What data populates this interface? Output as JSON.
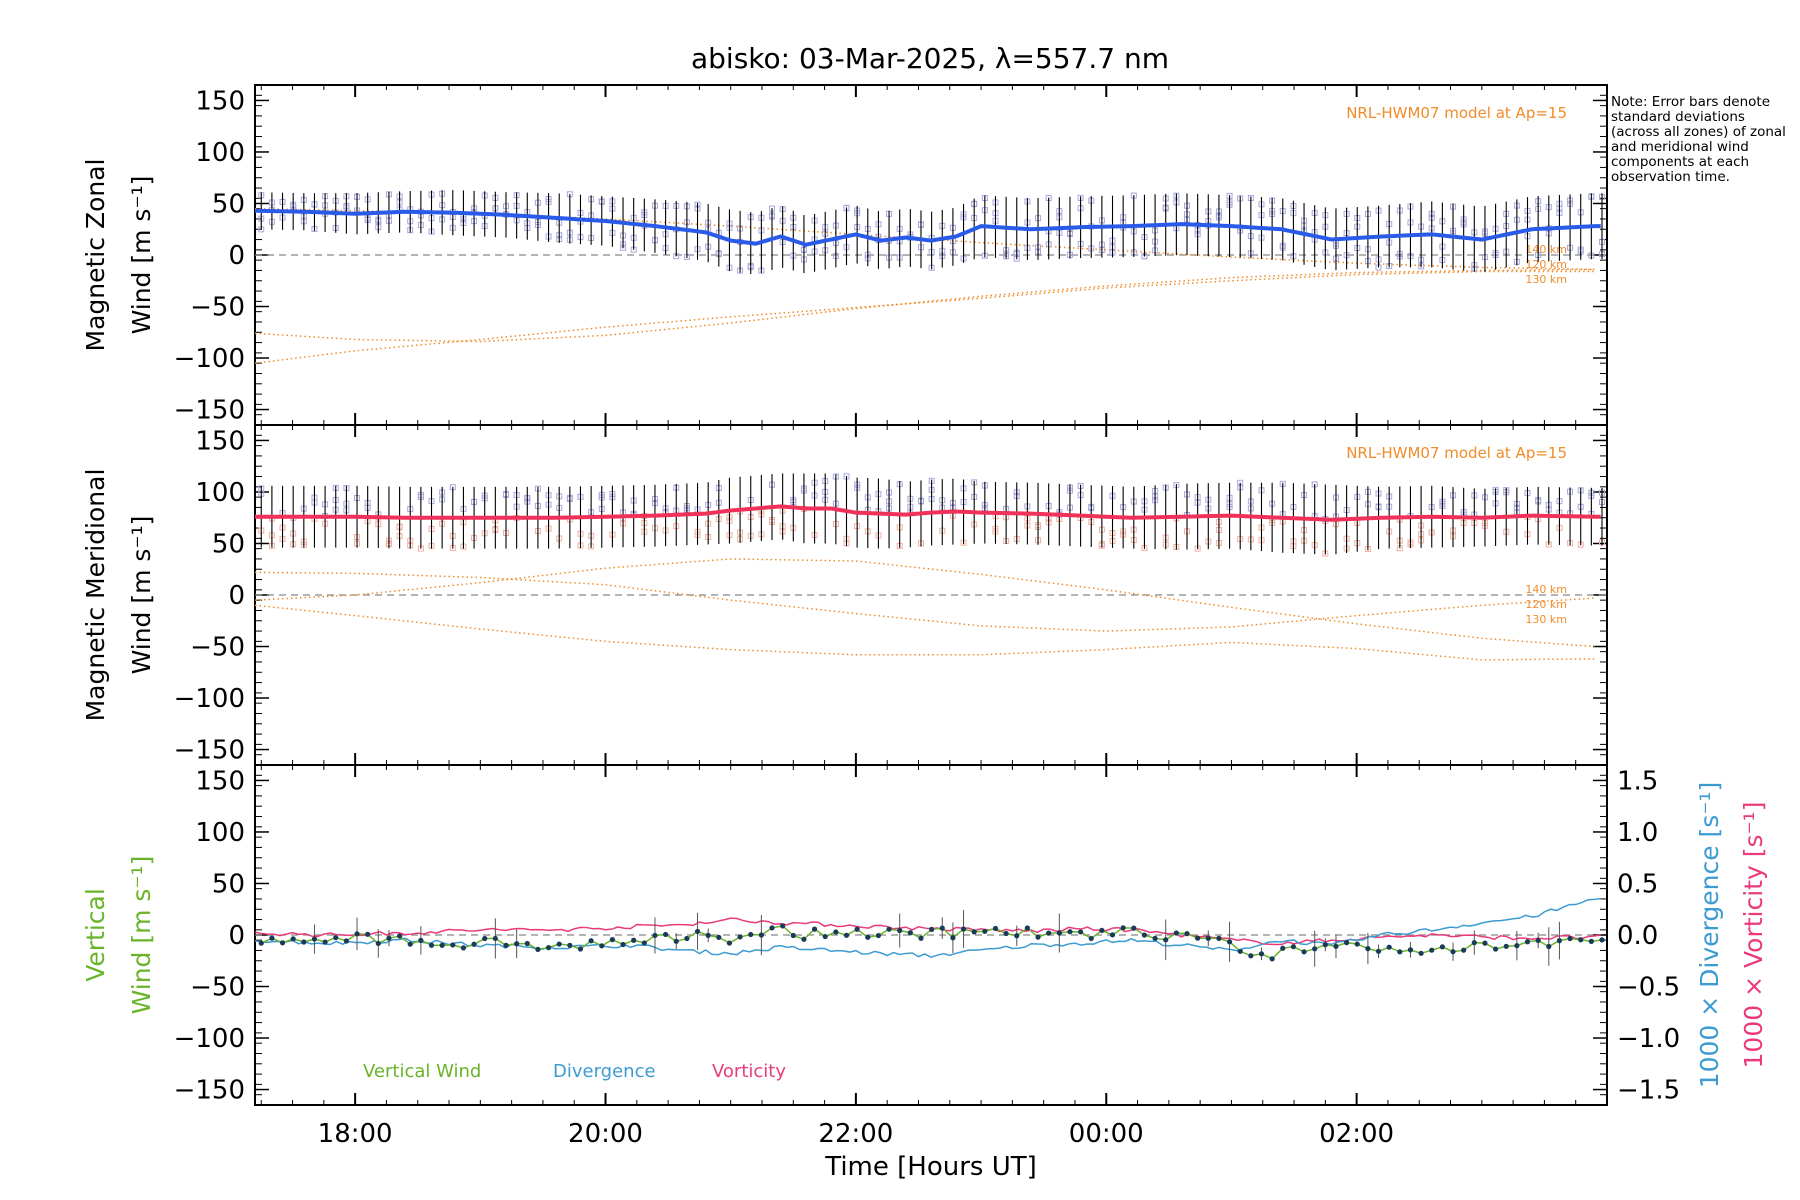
{
  "title": "abisko: 03-Mar-2025, λ=557.7 nm",
  "note": "Note: Error bars denote standard deviations (across all zones) of zonal and meridional wind components at each observation time.",
  "colors": {
    "model": "#f08c2a",
    "zonal_mean": "#2a5ae8",
    "zonal_mean_2": "#46a8e8",
    "meridional_mean": "#f0325a",
    "scatter": "#a8a8e0",
    "scatter_meridional_low": "#f4b0a0",
    "vertical": "#6ab42a",
    "divergence": "#3c9cd2",
    "vorticity": "#ea3a7c",
    "errorbar": "#000000",
    "zero_line": "#888888"
  },
  "chart_data": [
    {
      "type": "line",
      "panel": "zonal",
      "ylabel_line1": "Magnetic Zonal",
      "ylabel_line2": "Wind [m s⁻¹]",
      "ylim": [
        -165,
        165
      ],
      "yticks": [
        -150,
        -100,
        -50,
        0,
        50,
        100,
        150
      ],
      "ytick_labels": [
        "−150",
        "−100",
        "−50",
        "0",
        "50",
        "100",
        "150"
      ],
      "model_label": "NRL-HWM07 model at Ap=15",
      "model_series": [
        {
          "name": "140 km",
          "x": [
            17.2,
            18,
            19,
            20,
            21,
            22,
            23,
            24,
            25,
            26,
            27,
            27.9
          ],
          "y": [
            45,
            43,
            40,
            35,
            28,
            20,
            12,
            5,
            -2,
            -8,
            -12,
            -14
          ]
        },
        {
          "name": "120 km",
          "x": [
            17.2,
            18,
            19,
            20,
            21,
            22,
            23,
            24,
            25,
            26,
            27,
            27.9
          ],
          "y": [
            -76,
            -82,
            -84,
            -78,
            -66,
            -52,
            -40,
            -30,
            -22,
            -17,
            -15,
            -14
          ]
        },
        {
          "name": "130 km",
          "x": [
            17.2,
            18,
            19,
            20,
            21,
            22,
            23,
            24,
            25,
            26,
            27,
            27.9
          ],
          "y": [
            -105,
            -93,
            -82,
            -70,
            -60,
            -51,
            -42,
            -32,
            -25,
            -19,
            -16,
            -16
          ]
        }
      ],
      "mean_x": [
        17.2,
        17.6,
        18,
        18.4,
        18.8,
        19.2,
        19.6,
        20,
        20.4,
        20.8,
        21,
        21.2,
        21.4,
        21.6,
        21.8,
        22,
        22.2,
        22.4,
        22.6,
        22.8,
        23,
        23.4,
        23.8,
        24.2,
        24.6,
        25,
        25.4,
        25.8,
        26.2,
        26.6,
        27,
        27.4,
        27.9
      ],
      "mean_y": [
        43,
        42,
        40,
        42,
        41,
        39,
        36,
        33,
        28,
        22,
        14,
        11,
        18,
        10,
        15,
        20,
        14,
        17,
        14,
        18,
        28,
        25,
        27,
        28,
        30,
        28,
        25,
        15,
        18,
        20,
        15,
        25,
        28
      ],
      "err": [
        18,
        18,
        20,
        20,
        22,
        22,
        24,
        24,
        26,
        28,
        30,
        30,
        30,
        28,
        28,
        28,
        28,
        28,
        28,
        28,
        30,
        30,
        30,
        30,
        30,
        30,
        30,
        30,
        30,
        32,
        32,
        32,
        32
      ]
    },
    {
      "type": "line",
      "panel": "meridional",
      "ylabel_line1": "Magnetic Meridional",
      "ylabel_line2": "Wind [m s⁻¹]",
      "ylim": [
        -165,
        165
      ],
      "yticks": [
        -150,
        -100,
        -50,
        0,
        50,
        100,
        150
      ],
      "ytick_labels": [
        "−150",
        "−100",
        "−50",
        "0",
        "50",
        "100",
        "150"
      ],
      "model_label": "NRL-HWM07 model at Ap=15",
      "model_series": [
        {
          "name": "140 km",
          "x": [
            17.2,
            18,
            19,
            20,
            21,
            22,
            23,
            24,
            25,
            26,
            27,
            27.9
          ],
          "y": [
            -5,
            0,
            12,
            26,
            35,
            33,
            20,
            5,
            -12,
            -28,
            -42,
            -50
          ]
        },
        {
          "name": "120 km",
          "x": [
            17.2,
            18,
            19,
            20,
            21,
            22,
            23,
            24,
            25,
            26,
            27,
            27.9
          ],
          "y": [
            22,
            21,
            17,
            10,
            -5,
            -18,
            -30,
            -35,
            -31,
            -20,
            -10,
            -3
          ]
        },
        {
          "name": "130 km",
          "x": [
            17.2,
            18,
            19,
            20,
            21,
            22,
            23,
            24,
            25,
            26,
            27,
            27.9
          ],
          "y": [
            -10,
            -20,
            -33,
            -45,
            -53,
            -58,
            -58,
            -53,
            -46,
            -52,
            -63,
            -62
          ]
        }
      ],
      "mean_x": [
        17.2,
        17.6,
        18,
        18.4,
        18.8,
        19.2,
        19.6,
        20,
        20.4,
        20.8,
        21,
        21.2,
        21.4,
        21.6,
        21.8,
        22,
        22.2,
        22.4,
        22.6,
        22.8,
        23,
        23.4,
        23.8,
        24.2,
        24.6,
        25,
        25.4,
        25.8,
        26.2,
        26.6,
        27,
        27.4,
        27.9
      ],
      "mean_y": [
        76,
        76,
        76,
        75,
        75,
        75,
        75,
        76,
        77,
        79,
        82,
        84,
        86,
        84,
        84,
        80,
        79,
        78,
        80,
        81,
        80,
        79,
        77,
        75,
        76,
        77,
        75,
        73,
        75,
        76,
        75,
        77,
        76
      ],
      "err": [
        30,
        30,
        30,
        30,
        30,
        30,
        30,
        30,
        30,
        30,
        32,
        32,
        32,
        34,
        34,
        34,
        34,
        32,
        32,
        32,
        30,
        30,
        30,
        30,
        32,
        32,
        34,
        34,
        30,
        30,
        28,
        28,
        28
      ]
    },
    {
      "type": "line",
      "panel": "vertical",
      "ylabel_line1": "Vertical",
      "ylabel_line2": "Wind [m s⁻¹]",
      "right_label_1": "1000 × Divergence [s⁻¹]",
      "right_label_2": "1000 × Vorticity [s⁻¹]",
      "ylim": [
        -165,
        165
      ],
      "yticks": [
        -150,
        -100,
        -50,
        0,
        50,
        100,
        150
      ],
      "ytick_labels": [
        "−150",
        "−100",
        "−50",
        "0",
        "50",
        "100",
        "150"
      ],
      "y2lim": [
        -1.65,
        1.65
      ],
      "y2ticks": [
        -1.5,
        -1.0,
        -0.5,
        0.0,
        0.5,
        1.0,
        1.5
      ],
      "y2tick_labels": [
        "−1.5",
        "−1.0",
        "−0.5",
        "0.0",
        "0.5",
        "1.0",
        "1.5"
      ],
      "legend": [
        "Vertical Wind",
        "Divergence",
        "Vorticity"
      ],
      "vertical_x": [
        17.2,
        17.6,
        18,
        18.4,
        18.8,
        19.2,
        19.6,
        20,
        20.4,
        20.8,
        21,
        21.2,
        21.4,
        21.6,
        21.8,
        22,
        22.2,
        22.4,
        22.6,
        22.8,
        23,
        23.4,
        23.8,
        24.2,
        24.6,
        25,
        25.2,
        25.4,
        25.8,
        26.2,
        26.6,
        27,
        27.4,
        27.9
      ],
      "vertical_y": [
        -3,
        -8,
        -2,
        -5,
        -10,
        -6,
        -12,
        -8,
        -5,
        0,
        -3,
        2,
        5,
        0,
        2,
        3,
        2,
        0,
        3,
        2,
        4,
        2,
        0,
        3,
        -2,
        -10,
        -25,
        -15,
        -8,
        -12,
        -15,
        -10,
        -8,
        -8
      ],
      "divergence_x": [
        17.2,
        17.8,
        18.4,
        19,
        19.6,
        20.2,
        20.6,
        21,
        21.4,
        21.8,
        22.2,
        22.6,
        23,
        23.4,
        23.8,
        24.2,
        24.6,
        25,
        25.4,
        25.8,
        26.2,
        26.6,
        27,
        27.4,
        27.9
      ],
      "divergence_y": [
        -0.05,
        -0.08,
        -0.05,
        -0.1,
        -0.12,
        -0.1,
        -0.15,
        -0.18,
        -0.12,
        -0.15,
        -0.18,
        -0.2,
        -0.15,
        -0.1,
        -0.08,
        -0.05,
        -0.1,
        -0.15,
        -0.05,
        -0.1,
        0.0,
        0.05,
        0.12,
        0.18,
        0.35
      ],
      "vorticity_x": [
        17.2,
        17.8,
        18.4,
        19,
        19.6,
        20.2,
        20.6,
        21,
        21.4,
        21.8,
        22.2,
        22.6,
        23,
        23.4,
        23.8,
        24.2,
        24.6,
        25,
        25.4,
        25.8,
        26.2,
        26.6,
        27,
        27.4,
        27.9
      ],
      "vorticity_y": [
        0.02,
        0.0,
        0.02,
        0.05,
        0.05,
        0.08,
        0.1,
        0.15,
        0.12,
        0.1,
        0.08,
        0.06,
        0.05,
        0.04,
        0.06,
        0.05,
        0.0,
        -0.05,
        -0.08,
        -0.05,
        -0.02,
        0.0,
        -0.02,
        -0.03,
        -0.02
      ]
    }
  ],
  "xaxis": {
    "label": "Time [Hours UT]",
    "xlim": [
      17.2,
      28.0
    ],
    "ticks": [
      18,
      20,
      22,
      24,
      26
    ],
    "tick_labels": [
      "18:00",
      "20:00",
      "22:00",
      "00:00",
      "02:00"
    ]
  }
}
